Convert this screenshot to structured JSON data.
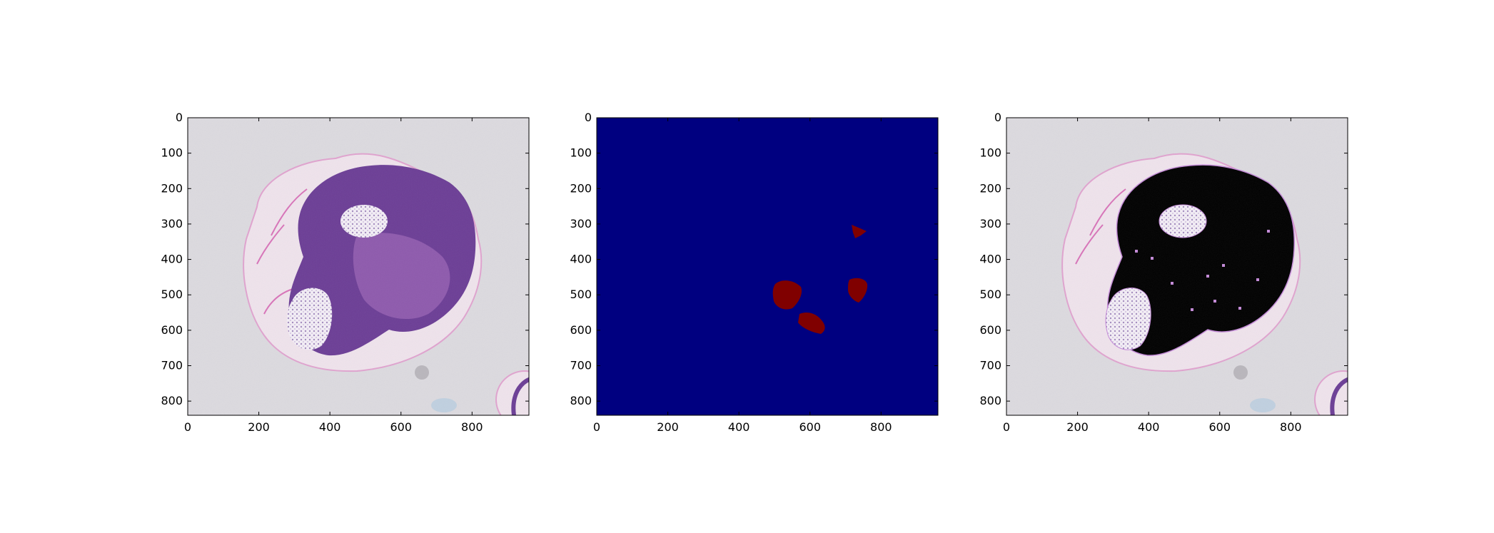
{
  "figure": {
    "panels": [
      {
        "kind": "tissue",
        "x_ticks": [
          "0",
          "200",
          "400",
          "600",
          "800"
        ],
        "y_ticks": [
          "0",
          "100",
          "200",
          "300",
          "400",
          "500",
          "600",
          "700",
          "800"
        ]
      },
      {
        "kind": "mask",
        "x_ticks": [
          "0",
          "200",
          "400",
          "600",
          "800"
        ],
        "y_ticks": [
          "0",
          "100",
          "200",
          "300",
          "400",
          "500",
          "600",
          "700",
          "800"
        ]
      },
      {
        "kind": "overlay",
        "x_ticks": [
          "0",
          "200",
          "400",
          "600",
          "800"
        ],
        "y_ticks": [
          "0",
          "100",
          "200",
          "300",
          "400",
          "500",
          "600",
          "700",
          "800"
        ]
      }
    ],
    "colors": {
      "background_gray": "#dcdadf",
      "tissue_dark": "#6c3e96",
      "tissue_mid": "#9a64b4",
      "tissue_pink": "#d98fc6",
      "mask_background": "#000080",
      "mask_region": "#800000",
      "overlay_black": "#000000"
    }
  }
}
